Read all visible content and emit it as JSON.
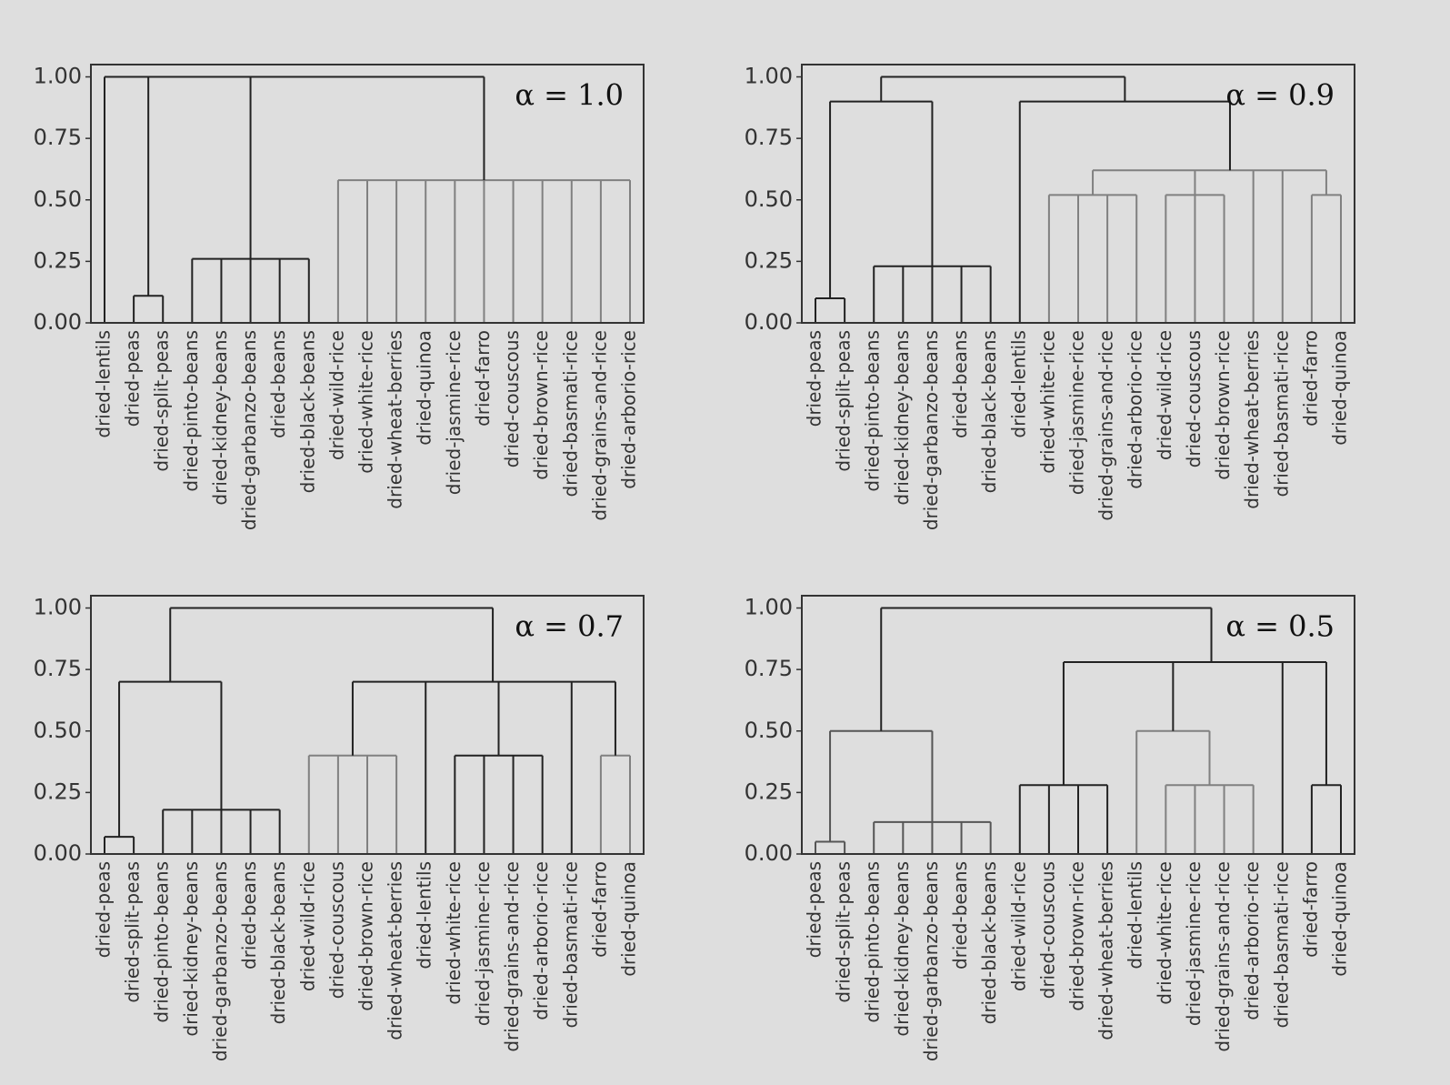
{
  "chart_data": [
    {
      "type": "dendrogram",
      "annotation": "α = 1.0",
      "leaves": [
        "dried-lentils",
        "dried-peas",
        "dried-split-peas",
        "dried-pinto-beans",
        "dried-kidney-beans",
        "dried-garbanzo-beans",
        "dried-beans",
        "dried-black-beans",
        "dried-wild-rice",
        "dried-white-rice",
        "dried-wheat-berries",
        "dried-quinoa",
        "dried-jasmine-rice",
        "dried-farro",
        "dried-couscous",
        "dried-brown-rice",
        "dried-basmati-rice",
        "dried-grains-and-rice",
        "dried-arborio-rice"
      ],
      "merges": [
        {
          "children": [
            1,
            2
          ],
          "height": 0.11,
          "color": "#222222"
        },
        {
          "children": [
            3,
            4,
            5,
            6,
            7
          ],
          "height": 0.26,
          "color": "#222222"
        },
        {
          "children": [
            8,
            9,
            10,
            11,
            12,
            13,
            14,
            15,
            16,
            17,
            18
          ],
          "height": 0.58,
          "color": "#808080"
        },
        {
          "children": [
            0,
            19,
            20,
            21
          ],
          "height": 1.0,
          "color": "#222222"
        }
      ],
      "ylim": [
        0,
        1.05
      ],
      "yticks": [
        {
          "value": 0,
          "label": "0.00"
        },
        0.25,
        {
          "value": 0.5,
          "label": "0.50"
        },
        0.75,
        {
          "value": 1,
          "label": "1.00"
        }
      ]
    },
    {
      "type": "dendrogram",
      "annotation": "α = 0.9",
      "leaves": [
        "dried-peas",
        "dried-split-peas",
        "dried-pinto-beans",
        "dried-kidney-beans",
        "dried-garbanzo-beans",
        "dried-beans",
        "dried-black-beans",
        "dried-lentils",
        "dried-white-rice",
        "dried-jasmine-rice",
        "dried-grains-and-rice",
        "dried-arborio-rice",
        "dried-wild-rice",
        "dried-couscous",
        "dried-brown-rice",
        "dried-wheat-berries",
        "dried-basmati-rice",
        "dried-farro",
        "dried-quinoa"
      ],
      "merges": [
        {
          "children": [
            0,
            1
          ],
          "height": 0.1,
          "color": "#222222"
        },
        {
          "children": [
            2,
            3,
            4,
            5,
            6
          ],
          "height": 0.23,
          "color": "#222222"
        },
        {
          "children": [
            19,
            20
          ],
          "height": 0.9,
          "color": "#222222"
        },
        {
          "children": [
            8,
            9,
            10,
            11
          ],
          "height": 0.52,
          "color": "#808080"
        },
        {
          "children": [
            12,
            13,
            14
          ],
          "height": 0.52,
          "color": "#808080"
        },
        {
          "children": [
            17,
            18
          ],
          "height": 0.52,
          "color": "#808080"
        },
        {
          "children": [
            22,
            23,
            15,
            16,
            24
          ],
          "height": 0.62,
          "color": "#808080"
        },
        {
          "children": [
            7,
            25
          ],
          "height": 0.9,
          "color": "#222222"
        },
        {
          "children": [
            21,
            26
          ],
          "height": 1.0,
          "color": "#222222"
        }
      ],
      "ylim": [
        0,
        1.05
      ],
      "yticks": [
        {
          "value": 0,
          "label": "0.00"
        },
        0.25,
        {
          "value": 0.5,
          "label": "0.50"
        },
        0.75,
        {
          "value": 1,
          "label": "1.00"
        }
      ]
    },
    {
      "type": "dendrogram",
      "annotation": "α = 0.7",
      "leaves": [
        "dried-peas",
        "dried-split-peas",
        "dried-pinto-beans",
        "dried-kidney-beans",
        "dried-garbanzo-beans",
        "dried-beans",
        "dried-black-beans",
        "dried-wild-rice",
        "dried-couscous",
        "dried-brown-rice",
        "dried-wheat-berries",
        "dried-lentils",
        "dried-white-rice",
        "dried-jasmine-rice",
        "dried-grains-and-rice",
        "dried-arborio-rice",
        "dried-basmati-rice",
        "dried-farro",
        "dried-quinoa"
      ],
      "merges": [
        {
          "children": [
            0,
            1
          ],
          "height": 0.07,
          "color": "#222222"
        },
        {
          "children": [
            2,
            3,
            4,
            5,
            6
          ],
          "height": 0.18,
          "color": "#222222"
        },
        {
          "children": [
            19,
            20
          ],
          "height": 0.7,
          "color": "#222222"
        },
        {
          "children": [
            7,
            8,
            9,
            10
          ],
          "height": 0.4,
          "color": "#808080"
        },
        {
          "children": [
            12,
            13,
            14,
            15
          ],
          "height": 0.4,
          "color": "#222222"
        },
        {
          "children": [
            17,
            18
          ],
          "height": 0.4,
          "color": "#808080"
        },
        {
          "children": [
            22,
            11,
            23,
            16,
            24
          ],
          "height": 0.7,
          "color": "#222222"
        },
        {
          "children": [
            21,
            25
          ],
          "height": 1.0,
          "color": "#222222"
        }
      ],
      "ylim": [
        0,
        1.05
      ],
      "yticks": [
        {
          "value": 0,
          "label": "0.00"
        },
        0.25,
        {
          "value": 0.5,
          "label": "0.50"
        },
        0.75,
        {
          "value": 1,
          "label": "1.00"
        }
      ]
    },
    {
      "type": "dendrogram",
      "annotation": "α = 0.5",
      "leaves": [
        "dried-peas",
        "dried-split-peas",
        "dried-pinto-beans",
        "dried-kidney-beans",
        "dried-garbanzo-beans",
        "dried-beans",
        "dried-black-beans",
        "dried-wild-rice",
        "dried-couscous",
        "dried-brown-rice",
        "dried-wheat-berries",
        "dried-lentils",
        "dried-white-rice",
        "dried-jasmine-rice",
        "dried-grains-and-rice",
        "dried-arborio-rice",
        "dried-basmati-rice",
        "dried-farro",
        "dried-quinoa"
      ],
      "merges": [
        {
          "children": [
            0,
            1
          ],
          "height": 0.05,
          "color": "#555555"
        },
        {
          "children": [
            2,
            3,
            4,
            5,
            6
          ],
          "height": 0.13,
          "color": "#555555"
        },
        {
          "children": [
            19,
            20
          ],
          "height": 0.5,
          "color": "#555555"
        },
        {
          "children": [
            7,
            8,
            9,
            10
          ],
          "height": 0.28,
          "color": "#222222"
        },
        {
          "children": [
            12,
            13,
            14,
            15
          ],
          "height": 0.28,
          "color": "#808080"
        },
        {
          "children": [
            11,
            23
          ],
          "height": 0.5,
          "color": "#808080"
        },
        {
          "children": [
            17,
            18
          ],
          "height": 0.28,
          "color": "#222222"
        },
        {
          "children": [
            22,
            24,
            16,
            25
          ],
          "height": 0.78,
          "color": "#222222"
        },
        {
          "children": [
            21,
            26
          ],
          "height": 1.0,
          "color": "#222222"
        }
      ],
      "ylim": [
        0,
        1.05
      ],
      "yticks": [
        {
          "value": 0,
          "label": "0.00"
        },
        0.25,
        {
          "value": 0.5,
          "label": "0.50"
        },
        0.75,
        {
          "value": 1,
          "label": "1.00"
        }
      ]
    }
  ]
}
